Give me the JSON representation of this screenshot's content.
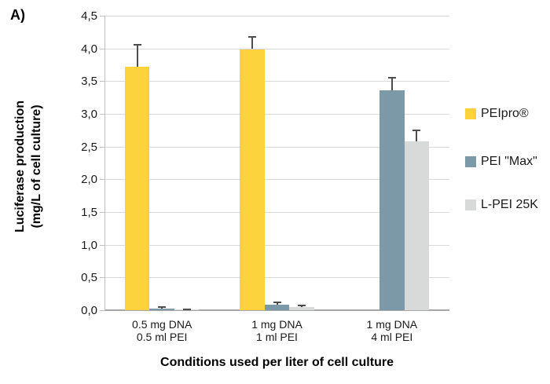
{
  "figure_label": "A)",
  "chart_data": {
    "type": "bar",
    "title": "",
    "xlabel": "Conditions used per liter of cell culture",
    "ylabel_lines": [
      "Luciferase production",
      "(mg/L of cell culture)"
    ],
    "categories": [
      [
        "0.5 mg DNA",
        "0.5 ml PEI"
      ],
      [
        "1 mg DNA",
        "1 ml PEI"
      ],
      [
        "1 mg DNA",
        "4 ml PEI"
      ]
    ],
    "series": [
      {
        "name": "PEIpro®",
        "color": "#FCD33C",
        "values": [
          3.72,
          3.99,
          0
        ],
        "errors": [
          0.35,
          0.2,
          0
        ]
      },
      {
        "name": "PEI \"Max\"",
        "color": "#7C99A8",
        "values": [
          0.03,
          0.08,
          3.36
        ],
        "errors": [
          0.03,
          0.05,
          0.21
        ]
      },
      {
        "name": "L-PEI 25K",
        "color": "#D8DAD9",
        "values": [
          0.01,
          0.05,
          2.58
        ],
        "errors": [
          0.01,
          0.03,
          0.18
        ]
      }
    ],
    "ylim": [
      0,
      4.5
    ],
    "ytick_step": 0.5,
    "ytick_labels": [
      "0,0",
      "0,5",
      "1,0",
      "1,5",
      "2,0",
      "2,5",
      "3,0",
      "3,5",
      "4,0",
      "4,5"
    ],
    "grid": true,
    "legend_position": "right",
    "colors": {
      "gridline": "#D9D9D9",
      "axis": "#BFBFBF",
      "baseline": "#A6A6A6",
      "error_bar": "#4D4D4D"
    }
  }
}
